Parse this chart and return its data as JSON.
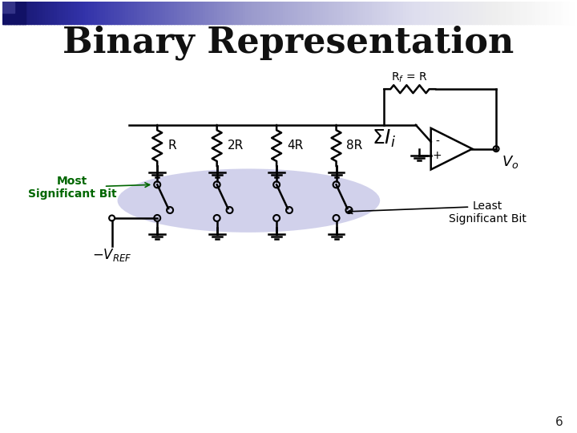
{
  "title": "Binary Representation",
  "title_fontsize": 32,
  "title_fontweight": "bold",
  "bg_color": "#ffffff",
  "circuit_color": "#000000",
  "ellipse_color": "#8888cc",
  "ellipse_alpha": 0.38,
  "rf_label": "R$_f$ = R",
  "resistor_labels": [
    "R",
    "2R",
    "4R",
    "8R"
  ],
  "vo_label": "V$_o$",
  "msb_label": "Most\nSignificant Bit",
  "lsb_label": "Least\nSignificant Bit",
  "page_num": "6",
  "minus_label": "-",
  "plus_label": "+"
}
